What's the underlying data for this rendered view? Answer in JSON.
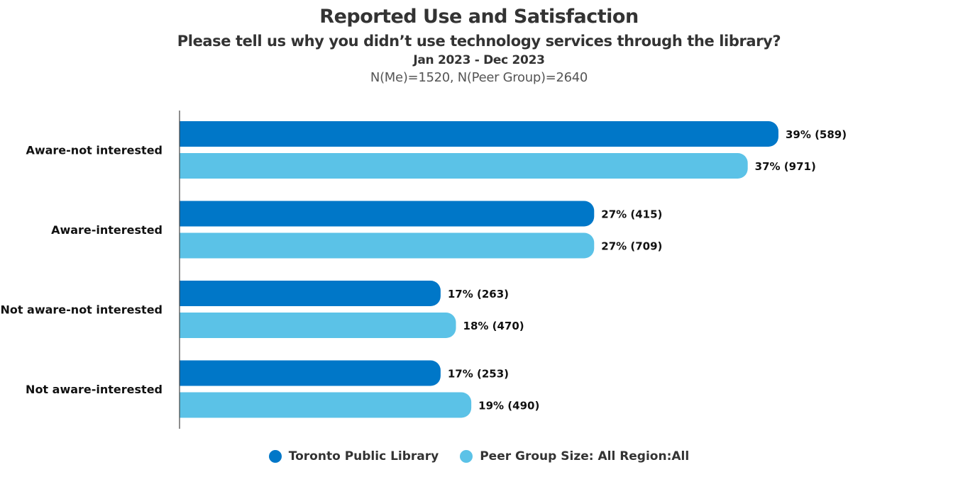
{
  "chart_data": {
    "type": "bar",
    "orientation": "horizontal",
    "title": "Reported Use and Satisfaction",
    "subtitle": "Please tell us why you didn’t use technology services through the library?",
    "period": "Jan 2023 - Dec 2023",
    "sample_sizes": "N(Me)=1520, N(Peer Group)=2640",
    "xlabel": "",
    "ylabel": "",
    "xlim": [
      0,
      100
    ],
    "grid": false,
    "legend_position": "bottom-center",
    "categories": [
      "Aware-not interested",
      "Aware-interested",
      "Not aware-not interested",
      "Not aware-interested"
    ],
    "series": [
      {
        "name": "Toronto Public Library",
        "color": "#0077C8",
        "values": [
          39,
          27,
          17,
          17
        ],
        "counts": [
          589,
          415,
          263,
          253
        ],
        "labels": [
          "39% (589)",
          "27% (415)",
          "17% (263)",
          "17% (253)"
        ]
      },
      {
        "name": "Peer Group Size: All Region:All",
        "color": "#5BC2E7",
        "values": [
          37,
          27,
          18,
          19
        ],
        "counts": [
          971,
          709,
          470,
          490
        ],
        "labels": [
          "37% (971)",
          "27% (709)",
          "18% (470)",
          "19% (490)"
        ]
      }
    ]
  }
}
